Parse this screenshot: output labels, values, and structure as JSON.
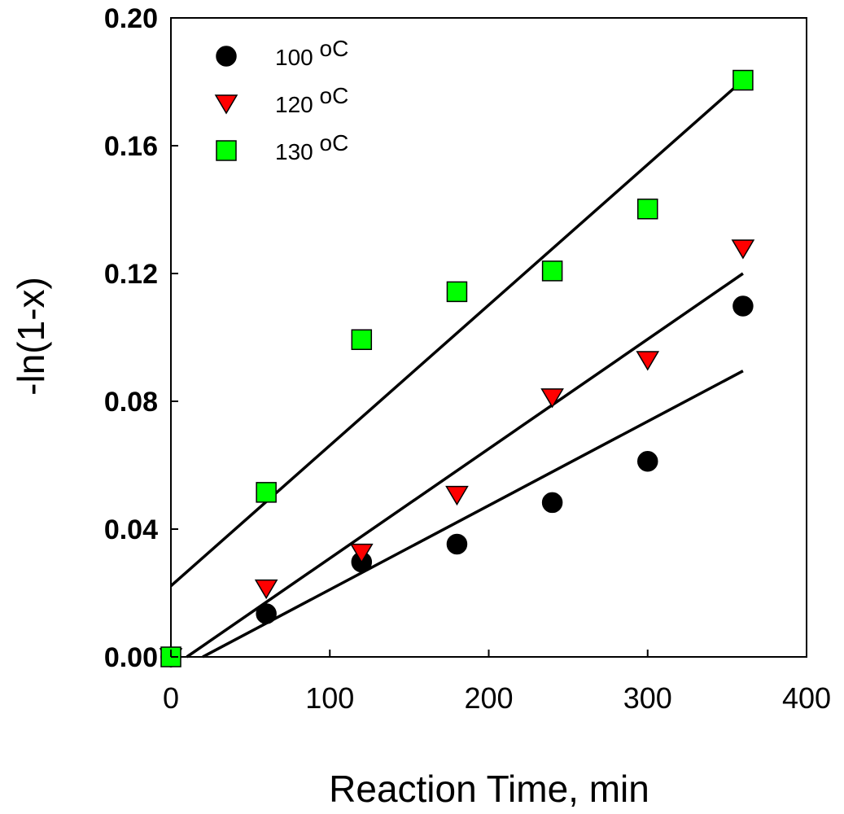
{
  "chart_data": {
    "type": "scatter",
    "title": "",
    "xlabel": "Reaction Time, min",
    "ylabel": "-ln(1-x)",
    "xlim": [
      0,
      400
    ],
    "ylim": [
      0,
      0.2
    ],
    "xticks": [
      0,
      100,
      200,
      300,
      400
    ],
    "xtick_labels": [
      "0",
      "100",
      "200",
      "300",
      "400"
    ],
    "yticks": [
      0,
      0.04,
      0.08,
      0.12,
      0.16,
      0.2
    ],
    "ytick_labels": [
      "0.00",
      "0.04",
      "0.08",
      "0.12",
      "0.16",
      "0.20"
    ],
    "grid": false,
    "legend_position": "top-left",
    "series": [
      {
        "name": "100 oC",
        "label_main": "100 ",
        "label_sup": "o",
        "label_unit": "C",
        "marker": "circle",
        "color": "#000000",
        "x": [
          0,
          60,
          120,
          180,
          240,
          300,
          360
        ],
        "y": [
          0.0,
          0.0135,
          0.0297,
          0.0353,
          0.0483,
          0.0612,
          0.1098
        ],
        "fit": {
          "x": [
            20,
            360
          ],
          "y": [
            0.0,
            0.0895
          ]
        }
      },
      {
        "name": "120 oC",
        "label_main": "120 ",
        "label_sup": "o",
        "label_unit": "C",
        "marker": "triangle-down",
        "color": "#ff0000",
        "x": [
          0,
          60,
          120,
          180,
          240,
          300,
          360
        ],
        "y": [
          0.0,
          0.0215,
          0.0327,
          0.0508,
          0.0813,
          0.093,
          0.1279
        ],
        "fit": {
          "x": [
            10,
            360
          ],
          "y": [
            0.0,
            0.12
          ]
        }
      },
      {
        "name": "130 oC",
        "label_main": "130 ",
        "label_sup": "o",
        "label_unit": "C",
        "marker": "square",
        "color": "#00ff00",
        "x": [
          0,
          60,
          120,
          180,
          240,
          300,
          360
        ],
        "y": [
          0.0,
          0.0515,
          0.0993,
          0.1143,
          0.1208,
          0.1402,
          0.1805
        ],
        "fit": {
          "x": [
            0,
            360
          ],
          "y": [
            0.0222,
            0.1805
          ]
        }
      }
    ]
  }
}
